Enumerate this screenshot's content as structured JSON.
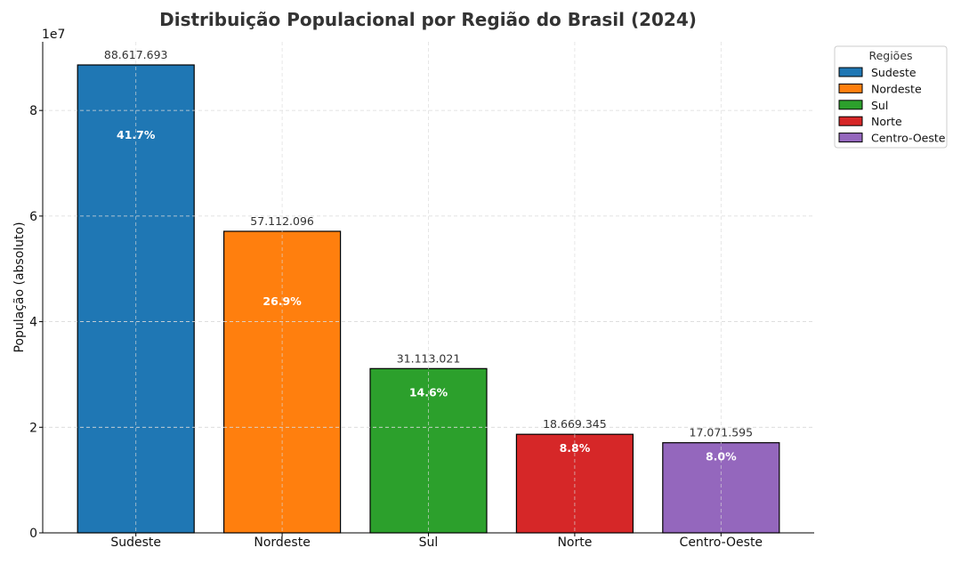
{
  "chart_data": {
    "type": "bar",
    "title": "Distribuição Populacional por Região do Brasil (2024)",
    "xlabel": "",
    "ylabel": "População (absoluto)",
    "offset_text": "1e7",
    "categories": [
      "Sudeste",
      "Nordeste",
      "Sul",
      "Norte",
      "Centro-Oeste"
    ],
    "values": [
      88617693,
      57112096,
      31113021,
      18669345,
      17071595
    ],
    "value_labels": [
      "88.617.693",
      "57.112.096",
      "31.113.021",
      "18.669.345",
      "17.071.595"
    ],
    "percent_labels": [
      "41.7%",
      "26.9%",
      "14.6%",
      "8.8%",
      "8.0%"
    ],
    "colors": [
      "#1f77b4",
      "#ff7f0e",
      "#2ca02c",
      "#d62728",
      "#9467bd"
    ],
    "ylim": [
      0,
      93000000
    ],
    "yticks": [
      0,
      20000000,
      40000000,
      60000000,
      80000000
    ],
    "ytick_labels": [
      "0",
      "2",
      "4",
      "6",
      "8"
    ],
    "grid": true,
    "legend": {
      "title": "Regiões",
      "placement": "outside-top-right",
      "entries": [
        "Sudeste",
        "Nordeste",
        "Sul",
        "Norte",
        "Centro-Oeste"
      ]
    }
  }
}
